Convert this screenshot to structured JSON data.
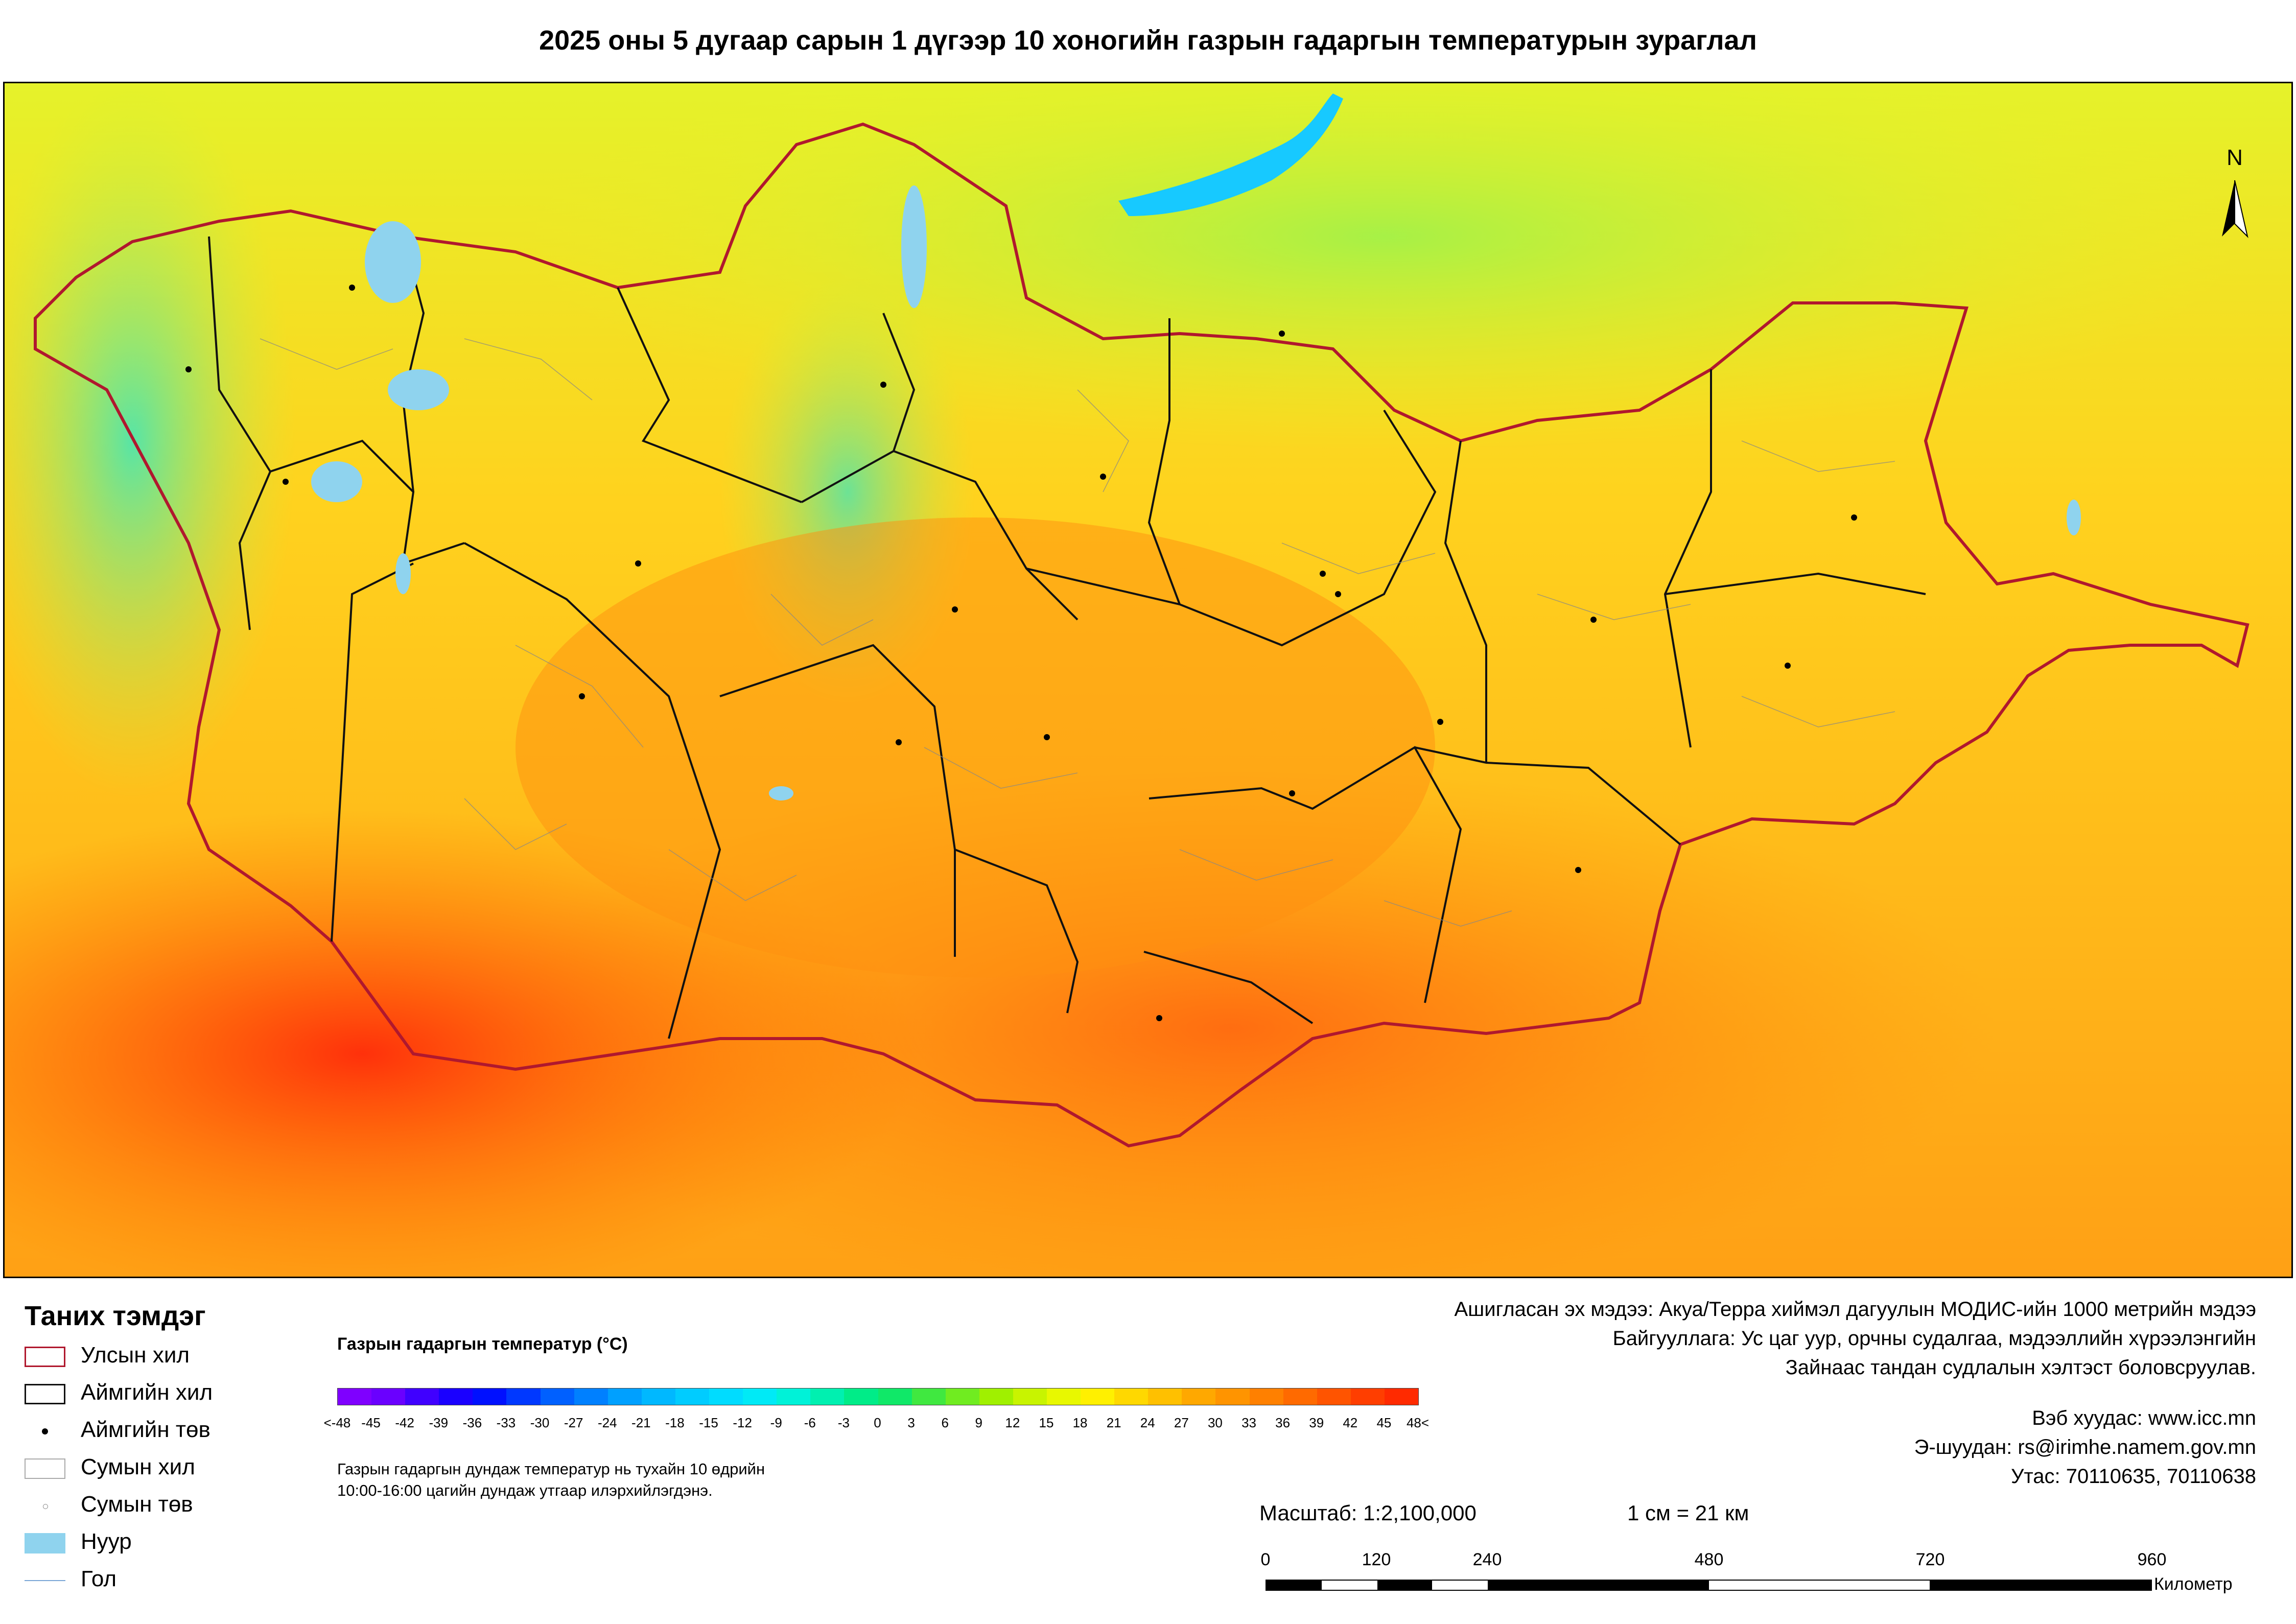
{
  "title": "2025 оны 5 дугаар сарын 1 дүгээр 10 хоногийн газрын гадаргын температурын зураглал",
  "map": {
    "north_arrow_label": "N",
    "colors": {
      "country_border": "#b0182e",
      "aimag_border": "#111111",
      "soum_border": "#888888",
      "lake": "#8fd3ee",
      "river": "#7aa6d6"
    }
  },
  "legend": {
    "title": "Таних тэмдэг",
    "items": [
      {
        "label": "Улсын хил",
        "symbol": "country-border"
      },
      {
        "label": "Аймгийн хил",
        "symbol": "aimag-border"
      },
      {
        "label": "Аймгийн төв",
        "symbol": "aimag-center"
      },
      {
        "label": "Сумын хил",
        "symbol": "soum-border"
      },
      {
        "label": "Сумын төв",
        "symbol": "soum-center"
      },
      {
        "label": "Нуур",
        "symbol": "lake"
      },
      {
        "label": "Гол",
        "symbol": "river"
      }
    ]
  },
  "color_scale": {
    "title": "Газрын гадаргын температур (°C)",
    "ticks": [
      "<-48",
      "-45",
      "-42",
      "-39",
      "-36",
      "-33",
      "-30",
      "-27",
      "-24",
      "-21",
      "-18",
      "-15",
      "-12",
      "-9",
      "-6",
      "-3",
      "0",
      "3",
      "6",
      "9",
      "12",
      "15",
      "18",
      "21",
      "24",
      "27",
      "30",
      "33",
      "36",
      "39",
      "42",
      "45",
      "48<"
    ],
    "colors": [
      "#7f00ff",
      "#6a00ff",
      "#4000ff",
      "#1a00ff",
      "#0010ff",
      "#0038ff",
      "#0060ff",
      "#0080ff",
      "#00a0ff",
      "#00b8ff",
      "#00ccff",
      "#00dcff",
      "#00eaf6",
      "#00f2d8",
      "#00f0b0",
      "#00ec88",
      "#10e868",
      "#40e840",
      "#70ec20",
      "#a0f000",
      "#c8f400",
      "#e8f800",
      "#fff000",
      "#ffd800",
      "#ffc000",
      "#ffa800",
      "#ff9400",
      "#ff8000",
      "#ff6a00",
      "#ff5400",
      "#ff3e00",
      "#ff2a00"
    ]
  },
  "note": {
    "line1": "Газрын гадаргын дундаж температур нь тухайн 10 өдрийн",
    "line2": "10:00-16:00 цагийн дундаж утгаар илэрхийлэгдэнэ."
  },
  "credits": {
    "line1": "Ашигласан эх мэдээ: Акуа/Терра хиймэл дагуулын МОДИС-ийн 1000 метрийн мэдээ",
    "line2": "Байгууллага: Ус цаг уур, орчны судалгаа, мэдээллийн хүрээлэнгийн",
    "line3": "Зайнаас тандан судлалын хэлтэст боловсруулав."
  },
  "contacts": {
    "web": "Вэб хуудас: www.icc.mn",
    "email": "Э-шуудан: rs@irimhe.namem.gov.mn",
    "phone": "Утас: 70110635, 70110638"
  },
  "scale": {
    "ratio": "Масштаб: 1:2,100,000",
    "equivalence": "1 см = 21 км",
    "labels": [
      "0",
      "120",
      "240",
      "480",
      "720",
      "960"
    ],
    "unit": "Километр"
  }
}
